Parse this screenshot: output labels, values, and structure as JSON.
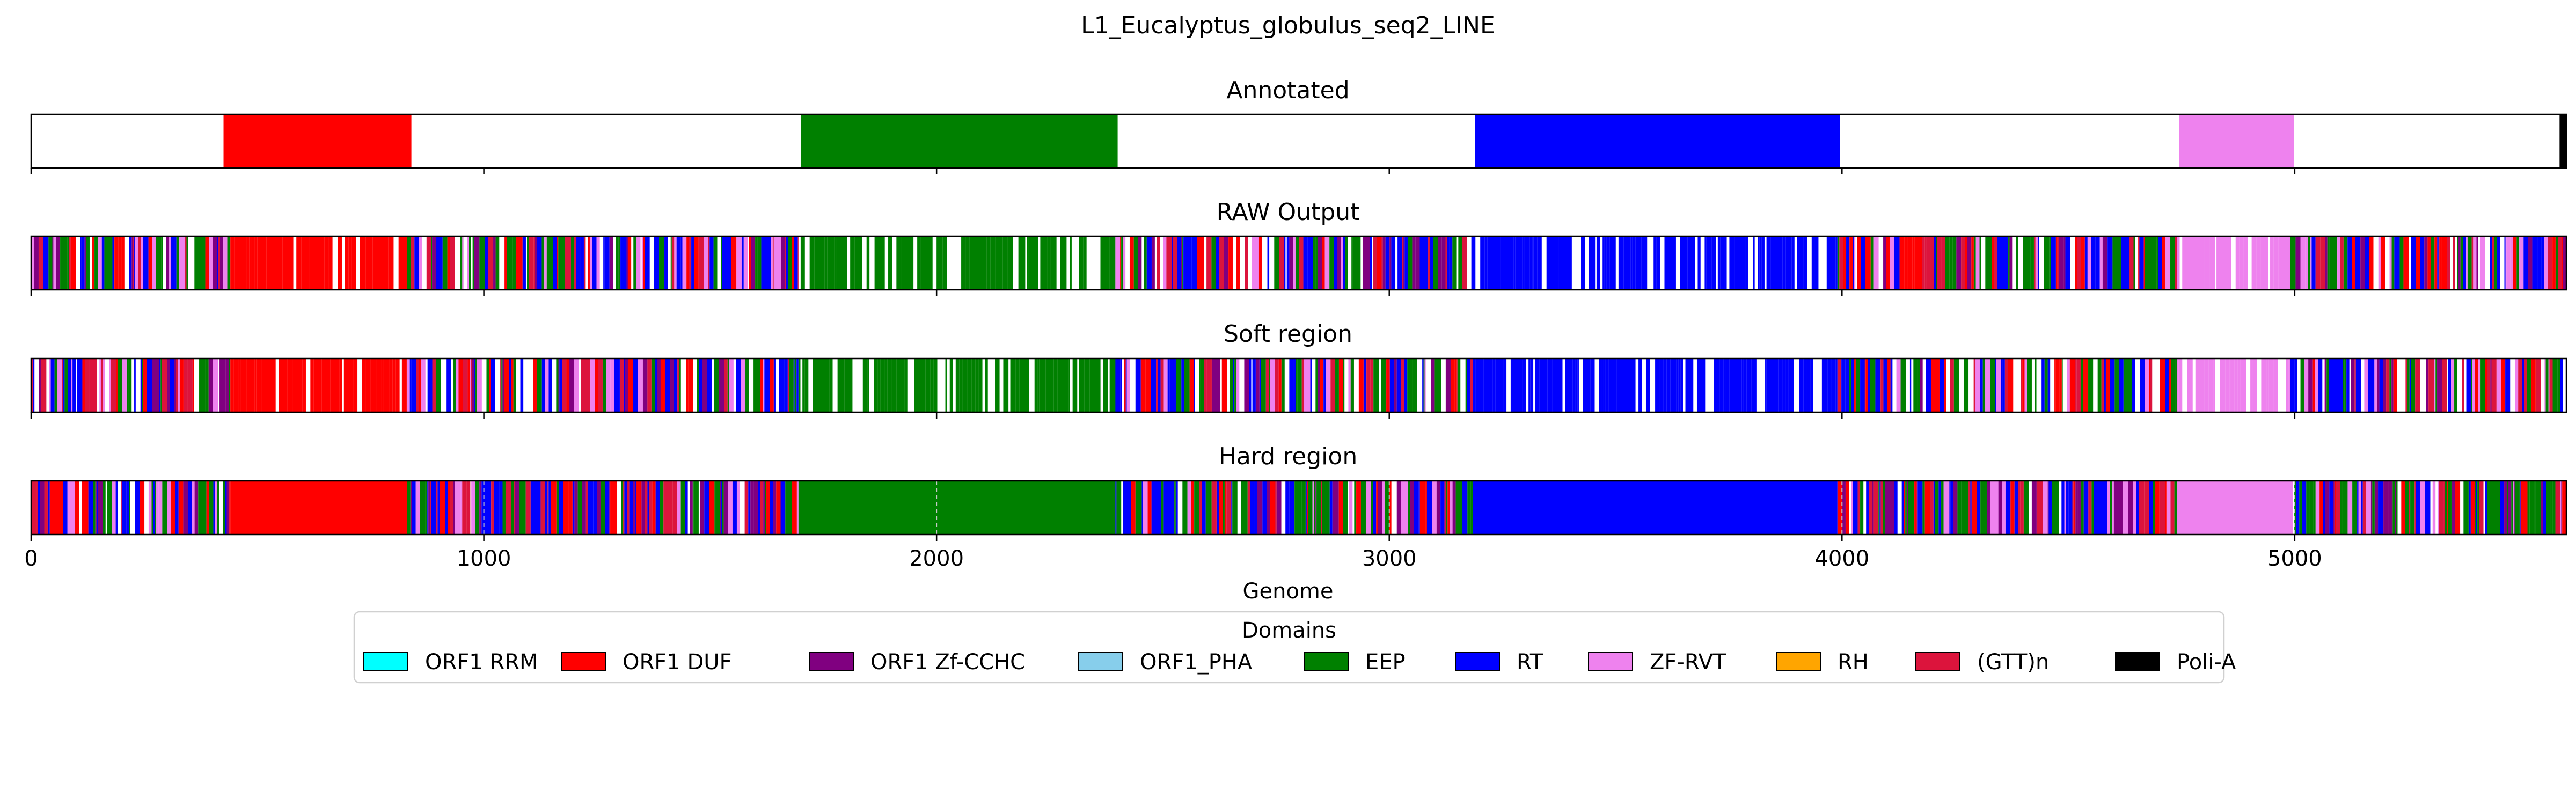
{
  "chart_data": {
    "type": "bar",
    "title": "L1_Eucalyptus_globulus_seq2_LINE",
    "xlabel": "Genome",
    "xlim": [
      0,
      5600
    ],
    "xticks": [
      0,
      1000,
      2000,
      3000,
      4000,
      5000
    ],
    "xtick_labels": [
      "0",
      "1000",
      "2000",
      "3000",
      "4000",
      "5000"
    ],
    "panels": [
      {
        "title": "Annotated",
        "mode": "annotated",
        "segments": [
          {
            "domain": "ORF1 DUF",
            "start": 425,
            "end": 840
          },
          {
            "domain": "EEP",
            "start": 1700,
            "end": 2400
          },
          {
            "domain": "RT",
            "start": 3190,
            "end": 3995
          },
          {
            "domain": "ZF-RVT",
            "start": 4745,
            "end": 4998
          },
          {
            "domain": "Poli-A",
            "start": 5585,
            "end": 5600
          }
        ]
      },
      {
        "title": "RAW Output",
        "mode": "raw"
      },
      {
        "title": "Soft region",
        "mode": "soft"
      },
      {
        "title": "Hard region",
        "mode": "hard"
      }
    ],
    "predicted_regions": [
      {
        "domain": "ORF1 DUF",
        "start": 440,
        "end": 830
      },
      {
        "domain": "EEP",
        "start": 1695,
        "end": 2395
      },
      {
        "domain": "RT",
        "start": 3185,
        "end": 3990
      },
      {
        "domain": "ZF-RVT",
        "start": 4740,
        "end": 4990
      }
    ],
    "legend": {
      "title": "Domains",
      "placement": "lower-center",
      "entries": [
        {
          "label": "ORF1 RRM",
          "color": "#00ffff"
        },
        {
          "label": "ORF1 DUF",
          "color": "#ff0000"
        },
        {
          "label": "ORF1 Zf-CCHC",
          "color": "#800080"
        },
        {
          "label": "ORF1_PHA",
          "color": "#87ceeb"
        },
        {
          "label": "EEP",
          "color": "#008000"
        },
        {
          "label": "RT",
          "color": "#0000ff"
        },
        {
          "label": "ZF-RVT",
          "color": "#ee82ee"
        },
        {
          "label": "RH",
          "color": "#ffa500"
        },
        {
          "label": "(GTT)n",
          "color": "#dc143c"
        },
        {
          "label": "Poli-A",
          "color": "#000000"
        }
      ]
    }
  }
}
